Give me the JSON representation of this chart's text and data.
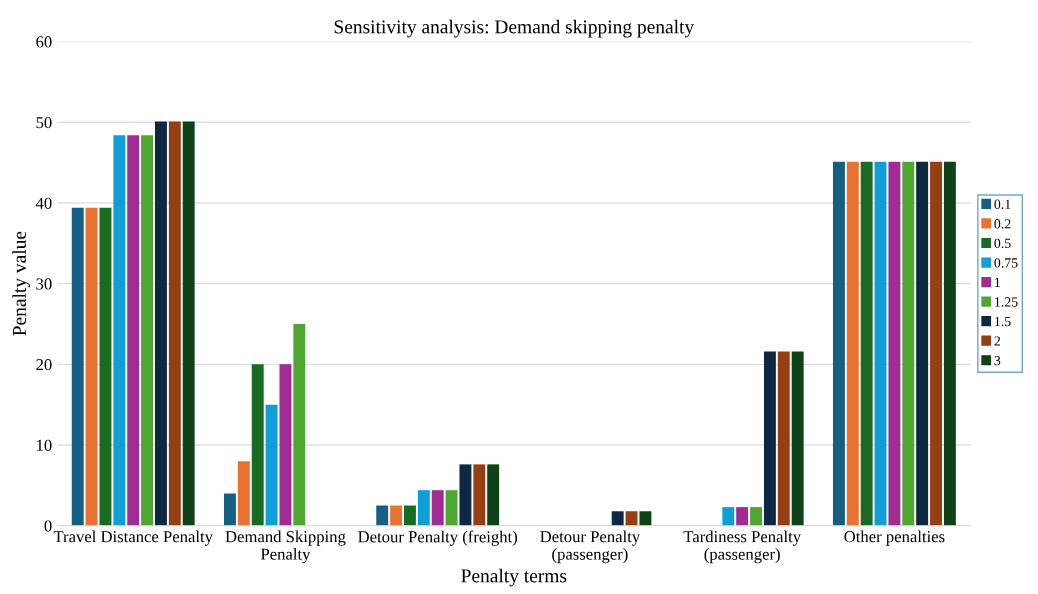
{
  "chart_data": {
    "type": "bar",
    "title": "Sensitivity analysis: Demand skipping penalty",
    "xlabel": "Penalty terms",
    "ylabel": "Penalty value",
    "categories": [
      "Travel Distance Penalty",
      "Demand Skipping\nPenalty",
      "Detour Penalty (freight)",
      "Detour Penalty\n(passenger)",
      "Tardiness Penalty\n(passenger)",
      "Other penalties"
    ],
    "series": [
      {
        "name": "0.1",
        "color": "#156082",
        "values": [
          39.4,
          4,
          2.5,
          0,
          0,
          45.1
        ]
      },
      {
        "name": "0.2",
        "color": "#e97132",
        "values": [
          39.4,
          8,
          2.5,
          0,
          0,
          45.1
        ]
      },
      {
        "name": "0.5",
        "color": "#196b24",
        "values": [
          39.4,
          20,
          2.5,
          0,
          0,
          45.1
        ]
      },
      {
        "name": "0.75",
        "color": "#0f9ed5",
        "values": [
          48.4,
          15,
          4.4,
          0,
          2.3,
          45.1
        ]
      },
      {
        "name": "1",
        "color": "#a02b93",
        "values": [
          48.4,
          20,
          4.4,
          0,
          2.3,
          45.1
        ]
      },
      {
        "name": "1.25",
        "color": "#4ea72e",
        "values": [
          48.4,
          25,
          4.4,
          0,
          2.3,
          45.1
        ]
      },
      {
        "name": "1.5",
        "color": "#0e2841",
        "values": [
          50.1,
          0,
          7.6,
          1.8,
          21.6,
          45.1
        ]
      },
      {
        "name": "2",
        "color": "#963f13",
        "values": [
          50.1,
          0,
          7.6,
          1.8,
          21.6,
          45.1
        ]
      },
      {
        "name": "3",
        "color": "#104218",
        "values": [
          50.1,
          0,
          7.6,
          1.8,
          21.6,
          45.1
        ]
      }
    ],
    "ylim": [
      0,
      60
    ],
    "yticks": [
      0,
      10,
      20,
      30,
      40,
      50,
      60
    ],
    "grid": "y",
    "legend": "right"
  }
}
